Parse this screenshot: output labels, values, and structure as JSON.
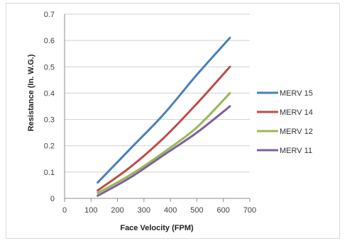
{
  "chart_data": {
    "type": "line",
    "title": "",
    "xlabel": "Face Velocity (FPM)",
    "ylabel": "Resistance (In. W.G.)",
    "xlim": [
      0,
      700
    ],
    "ylim": [
      0,
      0.7
    ],
    "xticks": [
      "0",
      "100",
      "200",
      "300",
      "400",
      "500",
      "600",
      "700"
    ],
    "yticks": [
      "0",
      "0.1",
      "0.2",
      "0.3",
      "0.4",
      "0.5",
      "0.6",
      "0.7"
    ],
    "grid": "horizontal",
    "legend_position": "right",
    "series": [
      {
        "name": "MERV 15",
        "color": "#4a7ebb",
        "x": [
          125,
          250,
          375,
          500,
          625
        ],
        "y": [
          0.06,
          0.19,
          0.32,
          0.47,
          0.61
        ]
      },
      {
        "name": "MERV 14",
        "color": "#be4b48",
        "x": [
          125,
          250,
          375,
          500,
          625
        ],
        "y": [
          0.03,
          0.12,
          0.23,
          0.36,
          0.5
        ]
      },
      {
        "name": "MERV 12",
        "color": "#98b954",
        "x": [
          125,
          250,
          375,
          500,
          625
        ],
        "y": [
          0.02,
          0.09,
          0.175,
          0.27,
          0.4
        ]
      },
      {
        "name": "MERV 11",
        "color": "#7d60a0",
        "x": [
          125,
          250,
          375,
          500,
          625
        ],
        "y": [
          0.01,
          0.08,
          0.165,
          0.25,
          0.35
        ]
      }
    ]
  }
}
